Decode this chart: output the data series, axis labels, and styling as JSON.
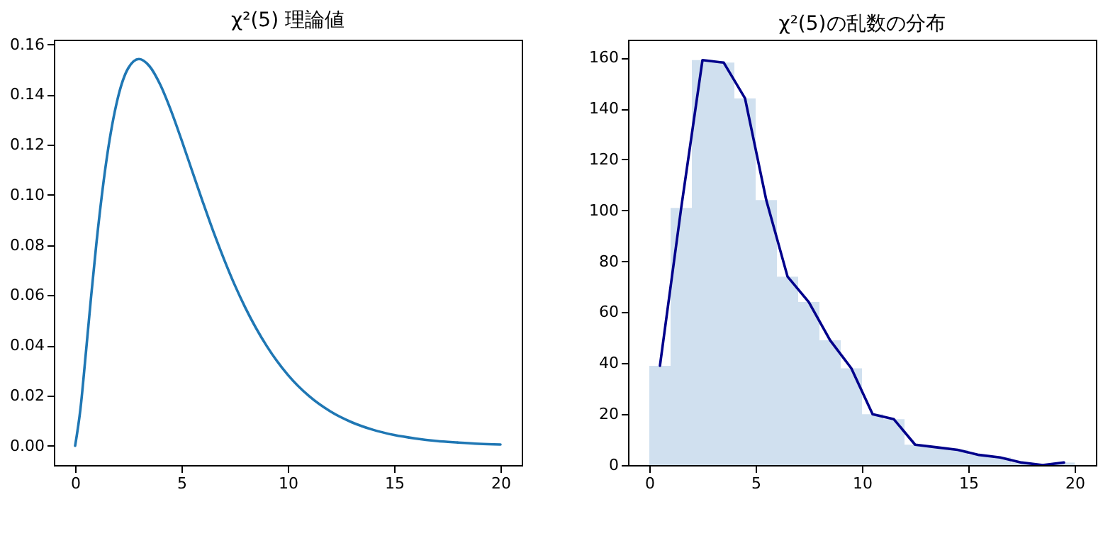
{
  "chart_data": [
    {
      "type": "line",
      "title": "χ²(5) 理論値",
      "color": "#1f77b4",
      "grid": false,
      "x": [
        0,
        0.25,
        0.5,
        0.75,
        1,
        1.5,
        2,
        2.5,
        3,
        3.5,
        4,
        4.5,
        5,
        5.5,
        6,
        6.5,
        7,
        7.5,
        8,
        9,
        10,
        11,
        12,
        13,
        14,
        15,
        16,
        17,
        18,
        19,
        20
      ],
      "values": [
        0,
        0.0147,
        0.0366,
        0.0594,
        0.0807,
        0.1154,
        0.1384,
        0.1506,
        0.1542,
        0.1513,
        0.144,
        0.1338,
        0.122,
        0.1096,
        0.0973,
        0.0854,
        0.0744,
        0.0642,
        0.0551,
        0.0399,
        0.0283,
        0.0198,
        0.0137,
        0.0094,
        0.0064,
        0.0043,
        0.0029,
        0.0019,
        0.0013,
        0.0008,
        0.0005
      ],
      "xlim": [
        -1,
        21
      ],
      "xticks": [
        0,
        5,
        10,
        15,
        20
      ],
      "ylim": [
        -0.0077,
        0.1619
      ],
      "yticks": [
        {
          "value": 0,
          "label": "0.00"
        },
        {
          "value": 0.02,
          "label": "0.02"
        },
        {
          "value": 0.04,
          "label": "0.04"
        },
        {
          "value": 0.06,
          "label": "0.06"
        },
        {
          "value": 0.08,
          "label": "0.08"
        },
        {
          "value": 0.1,
          "label": "0.10"
        },
        {
          "value": 0.12,
          "label": "0.12"
        },
        {
          "value": 0.14,
          "label": "0.14"
        },
        {
          "value": 0.16,
          "label": "0.16"
        }
      ]
    },
    {
      "type": "histogram",
      "title": "χ²(5)の乱数の分布",
      "grid": false,
      "bins": [
        0,
        1,
        2,
        3,
        4,
        5,
        6,
        7,
        8,
        9,
        10,
        11,
        12,
        13,
        14,
        15,
        16,
        17,
        18,
        19,
        20
      ],
      "series": [
        {
          "type": "histogram",
          "color": "#d0e0ef",
          "values": [
            39,
            101,
            159,
            158,
            144,
            104,
            74,
            64,
            49,
            38,
            20,
            18,
            8,
            7,
            6,
            4,
            3,
            1,
            0,
            1
          ]
        },
        {
          "type": "line",
          "color": "#00008b",
          "x": [
            0.5,
            1.5,
            2.5,
            3.5,
            4.5,
            5.5,
            6.5,
            7.5,
            8.5,
            9.5,
            10.5,
            11.5,
            12.5,
            13.5,
            14.5,
            15.5,
            16.5,
            17.5,
            18.5,
            19.5
          ],
          "values": [
            39,
            101,
            159,
            158,
            144,
            104,
            74,
            64,
            49,
            38,
            20,
            18,
            8,
            7,
            6,
            4,
            3,
            1,
            0,
            1
          ]
        }
      ],
      "xlim": [
        -1,
        21
      ],
      "xticks": [
        0,
        5,
        10,
        15,
        20
      ],
      "ylim": [
        0,
        167
      ],
      "yticks": [
        0,
        20,
        40,
        60,
        80,
        100,
        120,
        140,
        160
      ]
    }
  ]
}
